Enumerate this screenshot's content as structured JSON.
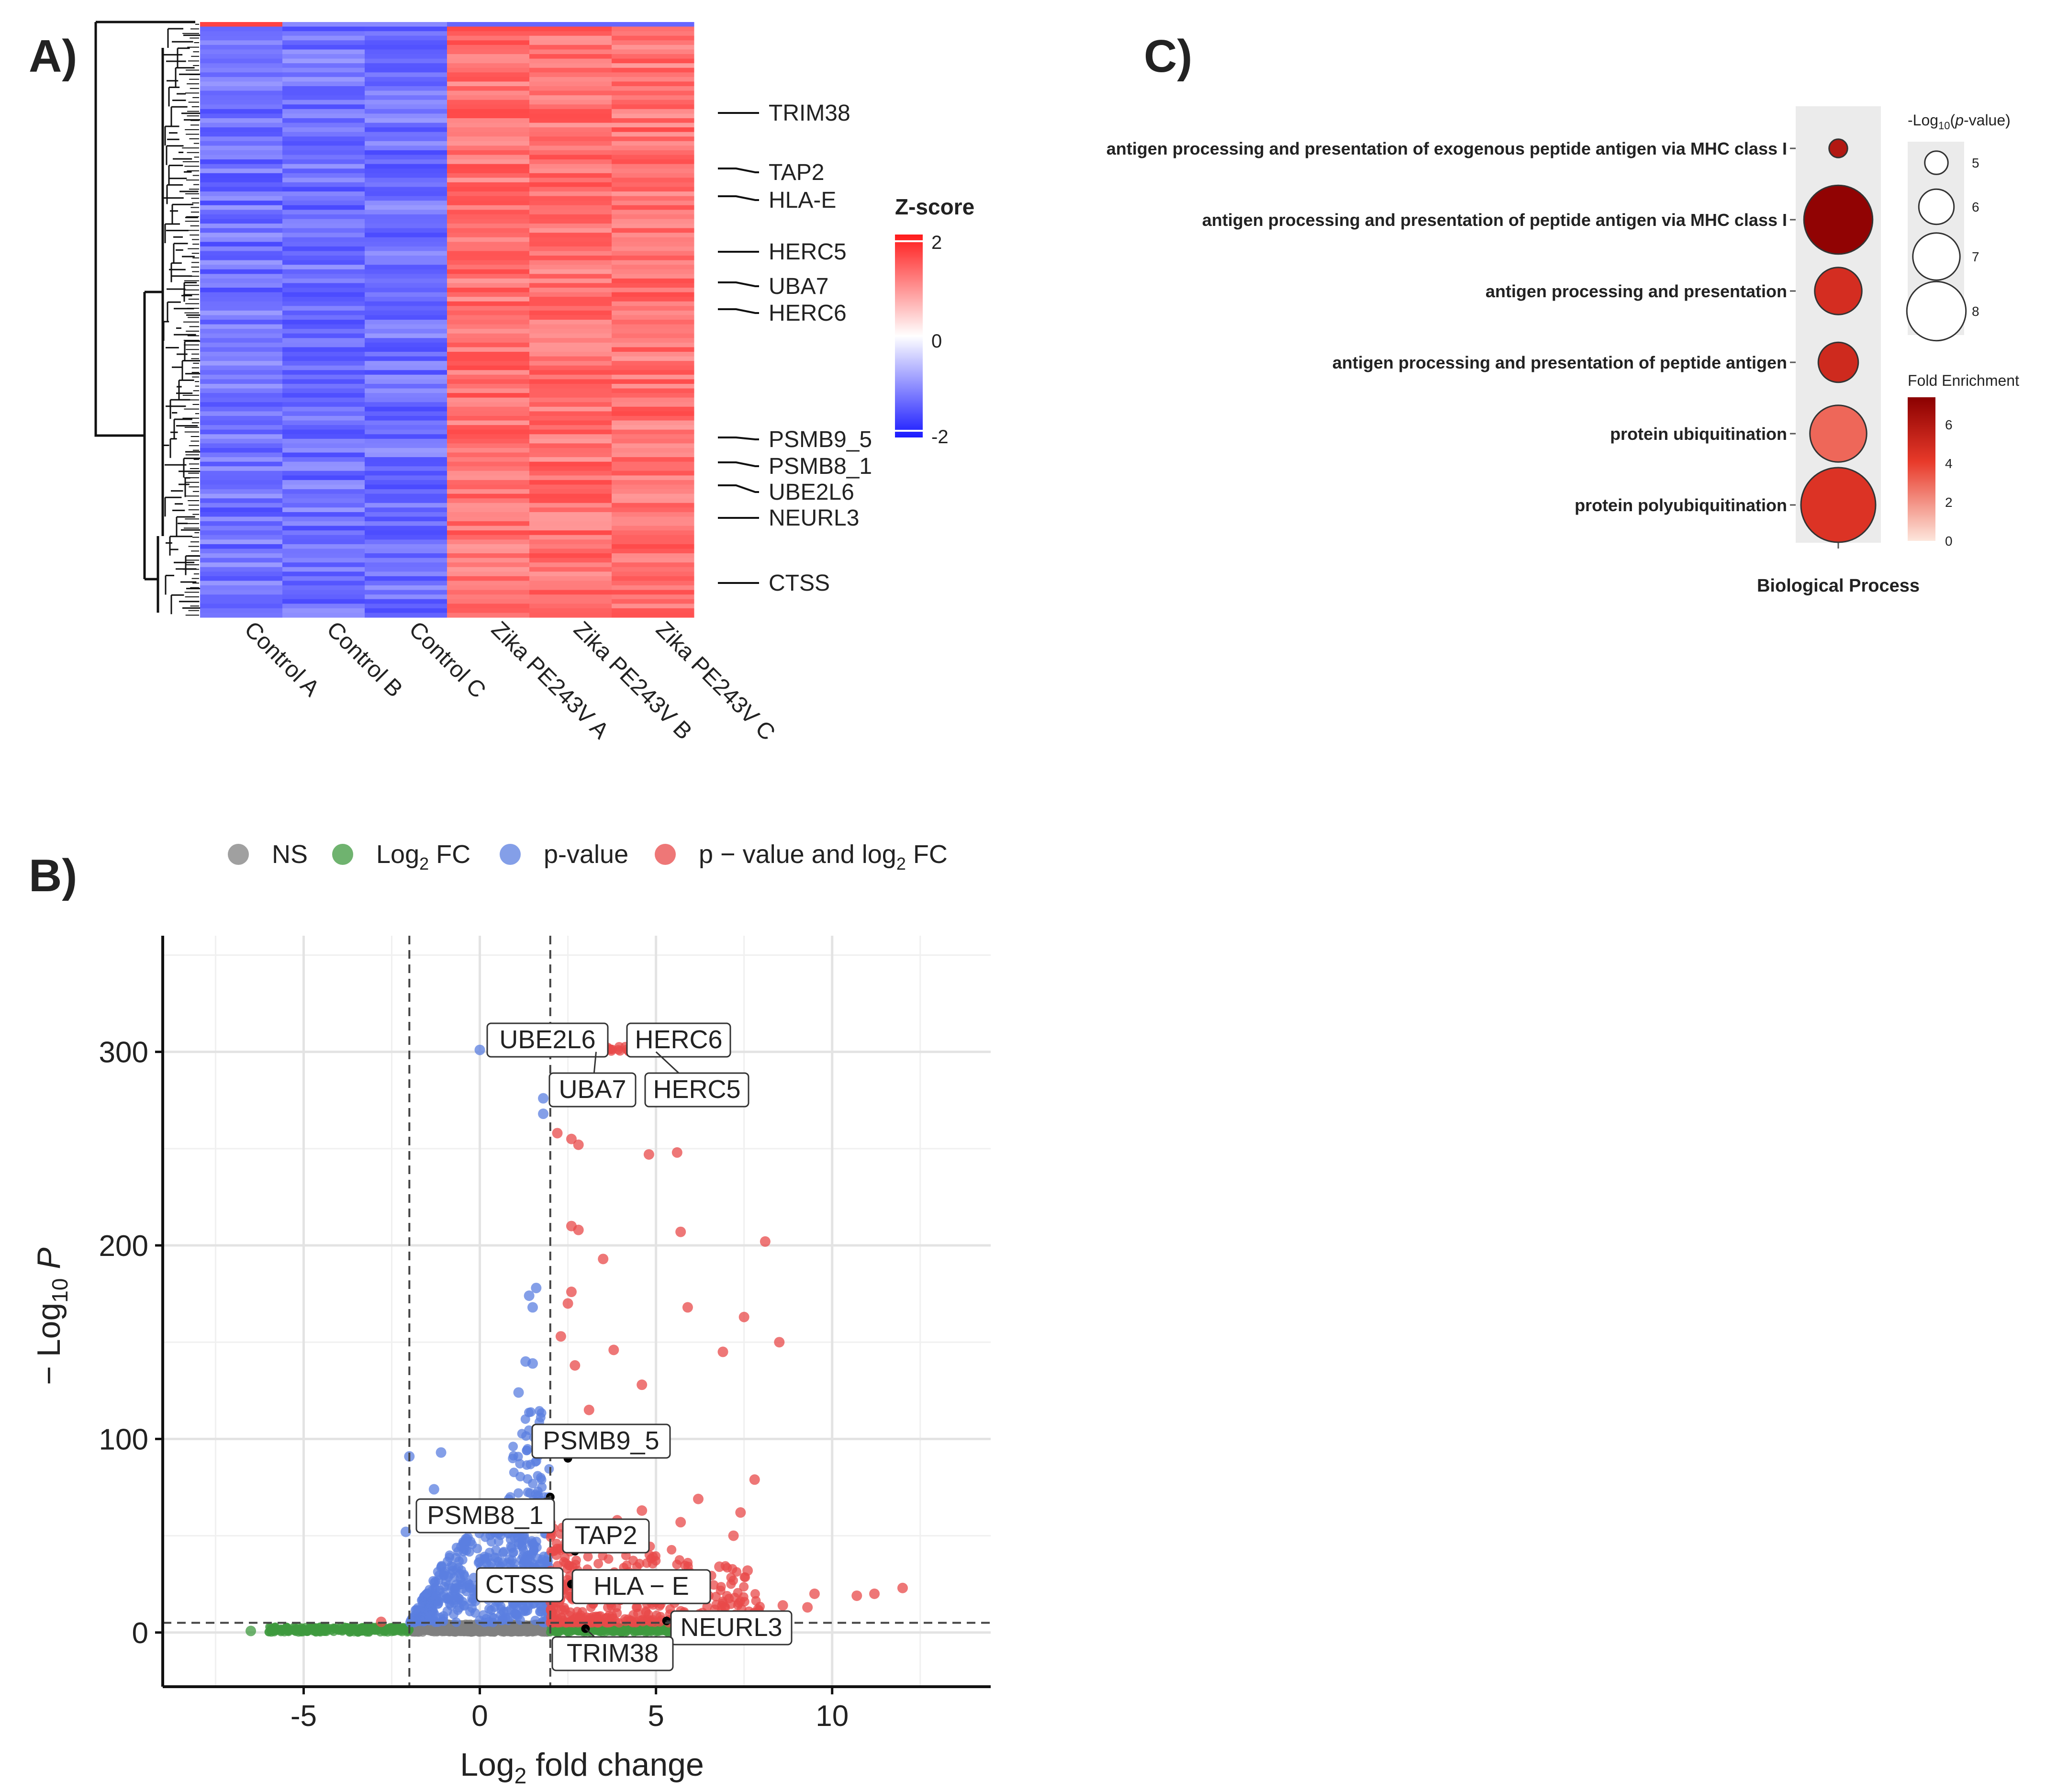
{
  "colors": {
    "ns": "#808080",
    "fc": "#3f9a3f",
    "pval": "#5b7fe0",
    "both": "#e84a4a",
    "heat_high": "#ff2020",
    "heat_low": "#2030ff",
    "fe_dark": "#8b0000",
    "fe_light": "#fde0d8"
  },
  "chart_data": [
    {
      "panel": "A)",
      "type": "heatmap",
      "columns": [
        "Control A",
        "Control B",
        "Control C",
        "Zika PE243V A",
        "Zika PE243V B",
        "Zika PE243V C"
      ],
      "row_labels": [
        "TRIM38",
        "TAP2",
        "HLA-E",
        "HERC5",
        "UBA7",
        "HERC6",
        "PSMB9_5",
        "PSMB8_1",
        "UBE2L6",
        "NEURL3",
        "CTSS"
      ],
      "legend_title": "Z-score",
      "scale_ticks": [
        "2",
        "0",
        "-2"
      ],
      "scale_range": [
        -2,
        2
      ],
      "pattern": {
        "control_z": -1.2,
        "zika_z": 1.2
      }
    },
    {
      "panel": "B)",
      "type": "scatter",
      "legend": [
        {
          "key": "ns",
          "label": "NS"
        },
        {
          "key": "fc",
          "label": "Log",
          "sub": "2",
          "suffix": " FC"
        },
        {
          "key": "pval",
          "label": "p-value"
        },
        {
          "key": "both",
          "label": "p − value and log",
          "sub": "2",
          "suffix": " FC"
        }
      ],
      "xlabel": {
        "main": "Log",
        "sub": "2",
        "rest": " fold change"
      },
      "ylabel": {
        "main": "− Log",
        "sub": "10",
        "rest": " P"
      },
      "xlim": [
        -9,
        14.5
      ],
      "ylim": [
        -28,
        360
      ],
      "xticks": [
        -5,
        0,
        5,
        10
      ],
      "yticks": [
        0,
        100,
        200,
        300
      ],
      "thresholds": {
        "fc": [
          -2,
          2
        ],
        "neglog10p": 5
      },
      "grid": true,
      "labeled_genes": [
        {
          "label": "UBE2L6",
          "x": 2.4,
          "y": 302
        },
        {
          "label": "HERC6",
          "x": 4.9,
          "y": 302
        },
        {
          "label": "UBA7",
          "x": 3.3,
          "y": 300
        },
        {
          "label": "HERC5",
          "x": 5.0,
          "y": 300
        },
        {
          "label": "PSMB9_5",
          "x": 2.5,
          "y": 90
        },
        {
          "label": "PSMB8_1",
          "x": 2.0,
          "y": 70
        },
        {
          "label": "TAP2",
          "x": 2.7,
          "y": 42
        },
        {
          "label": "CTSS",
          "x": 2.0,
          "y": 20
        },
        {
          "label": "HLA − E",
          "x": 2.6,
          "y": 25
        },
        {
          "label": "NEURL3",
          "x": 5.3,
          "y": 6
        },
        {
          "label": "TRIM38",
          "x": 3.0,
          "y": 2
        }
      ],
      "highlight_points": [
        {
          "x": 0.0,
          "y": 301,
          "group": "pval"
        },
        {
          "x": 2.0,
          "y": 300,
          "group": "pval"
        },
        {
          "x": 1.8,
          "y": 276,
          "group": "pval"
        },
        {
          "x": 1.8,
          "y": 268,
          "group": "pval"
        },
        {
          "x": 1.6,
          "y": 178,
          "group": "pval"
        },
        {
          "x": 1.4,
          "y": 174,
          "group": "pval"
        },
        {
          "x": 1.5,
          "y": 168,
          "group": "pval"
        },
        {
          "x": 1.3,
          "y": 140,
          "group": "pval"
        },
        {
          "x": 1.5,
          "y": 139,
          "group": "pval"
        },
        {
          "x": 1.1,
          "y": 124,
          "group": "pval"
        },
        {
          "x": -2.0,
          "y": 91,
          "group": "pval"
        },
        {
          "x": -1.1,
          "y": 93,
          "group": "pval"
        },
        {
          "x": -2.1,
          "y": 52,
          "group": "pval"
        },
        {
          "x": -1.3,
          "y": 74,
          "group": "pval"
        },
        {
          "x": 2.2,
          "y": 258,
          "group": "both"
        },
        {
          "x": 2.6,
          "y": 255,
          "group": "both"
        },
        {
          "x": 2.8,
          "y": 252,
          "group": "both"
        },
        {
          "x": 4.8,
          "y": 247,
          "group": "both"
        },
        {
          "x": 5.6,
          "y": 248,
          "group": "both"
        },
        {
          "x": 2.6,
          "y": 210,
          "group": "both"
        },
        {
          "x": 2.8,
          "y": 208,
          "group": "both"
        },
        {
          "x": 5.7,
          "y": 207,
          "group": "both"
        },
        {
          "x": 8.1,
          "y": 202,
          "group": "both"
        },
        {
          "x": 3.5,
          "y": 193,
          "group": "both"
        },
        {
          "x": 2.6,
          "y": 176,
          "group": "both"
        },
        {
          "x": 2.5,
          "y": 170,
          "group": "both"
        },
        {
          "x": 5.9,
          "y": 168,
          "group": "both"
        },
        {
          "x": 7.5,
          "y": 163,
          "group": "both"
        },
        {
          "x": 2.3,
          "y": 153,
          "group": "both"
        },
        {
          "x": 3.8,
          "y": 146,
          "group": "both"
        },
        {
          "x": 6.9,
          "y": 145,
          "group": "both"
        },
        {
          "x": 8.5,
          "y": 150,
          "group": "both"
        },
        {
          "x": 2.7,
          "y": 138,
          "group": "both"
        },
        {
          "x": 4.6,
          "y": 128,
          "group": "both"
        },
        {
          "x": 3.1,
          "y": 115,
          "group": "both"
        },
        {
          "x": 7.8,
          "y": 79,
          "group": "both"
        },
        {
          "x": 6.2,
          "y": 69,
          "group": "both"
        },
        {
          "x": 7.4,
          "y": 62,
          "group": "both"
        },
        {
          "x": 5.7,
          "y": 57,
          "group": "both"
        },
        {
          "x": 7.2,
          "y": 50,
          "group": "both"
        },
        {
          "x": 6.8,
          "y": 34,
          "group": "both"
        },
        {
          "x": 7.6,
          "y": 32,
          "group": "both"
        },
        {
          "x": 9.5,
          "y": 20,
          "group": "both"
        },
        {
          "x": 10.7,
          "y": 19,
          "group": "both"
        },
        {
          "x": 11.2,
          "y": 20,
          "group": "both"
        },
        {
          "x": 12.0,
          "y": 23,
          "group": "both"
        },
        {
          "x": 9.3,
          "y": 13,
          "group": "both"
        },
        {
          "x": 8.6,
          "y": 14,
          "group": "both"
        },
        {
          "x": 4.6,
          "y": 63,
          "group": "both"
        },
        {
          "x": 3.9,
          "y": 58,
          "group": "both"
        },
        {
          "x": -2.8,
          "y": 5.5,
          "group": "both"
        },
        {
          "x": -6.5,
          "y": 0.8,
          "group": "fc"
        }
      ]
    },
    {
      "panel": "C)",
      "type": "scatter",
      "terms": [
        {
          "label": "antigen processing and presentation of exogenous peptide antigen via MHC class I",
          "neglog10p": 4.6,
          "fold_enrichment": 6.0
        },
        {
          "label": "antigen processing and presentation of peptide antigen via MHC class I",
          "neglog10p": 8.8,
          "fold_enrichment": 7.2
        },
        {
          "label": "antigen processing and presentation",
          "neglog10p": 7.0,
          "fold_enrichment": 4.8
        },
        {
          "label": "antigen processing and presentation of peptide antigen",
          "neglog10p": 6.4,
          "fold_enrichment": 5.0
        },
        {
          "label": "protein ubiquitination",
          "neglog10p": 7.8,
          "fold_enrichment": 3.0
        },
        {
          "label": "protein polyubiquitination",
          "neglog10p": 9.3,
          "fold_enrichment": 4.5
        }
      ],
      "xlabel": "Biological Process",
      "size_legend_title": {
        "prefix": "-Log",
        "sub": "10",
        "italic": "p",
        "suffix": "-value)",
        "open": "("
      },
      "size_legend_ticks": [
        "5",
        "6",
        "7",
        "8"
      ],
      "color_legend_title": "Fold Enrichment",
      "color_legend_ticks": [
        "6",
        "4",
        "2",
        "0"
      ],
      "color_range": [
        0,
        7.4
      ]
    }
  ]
}
